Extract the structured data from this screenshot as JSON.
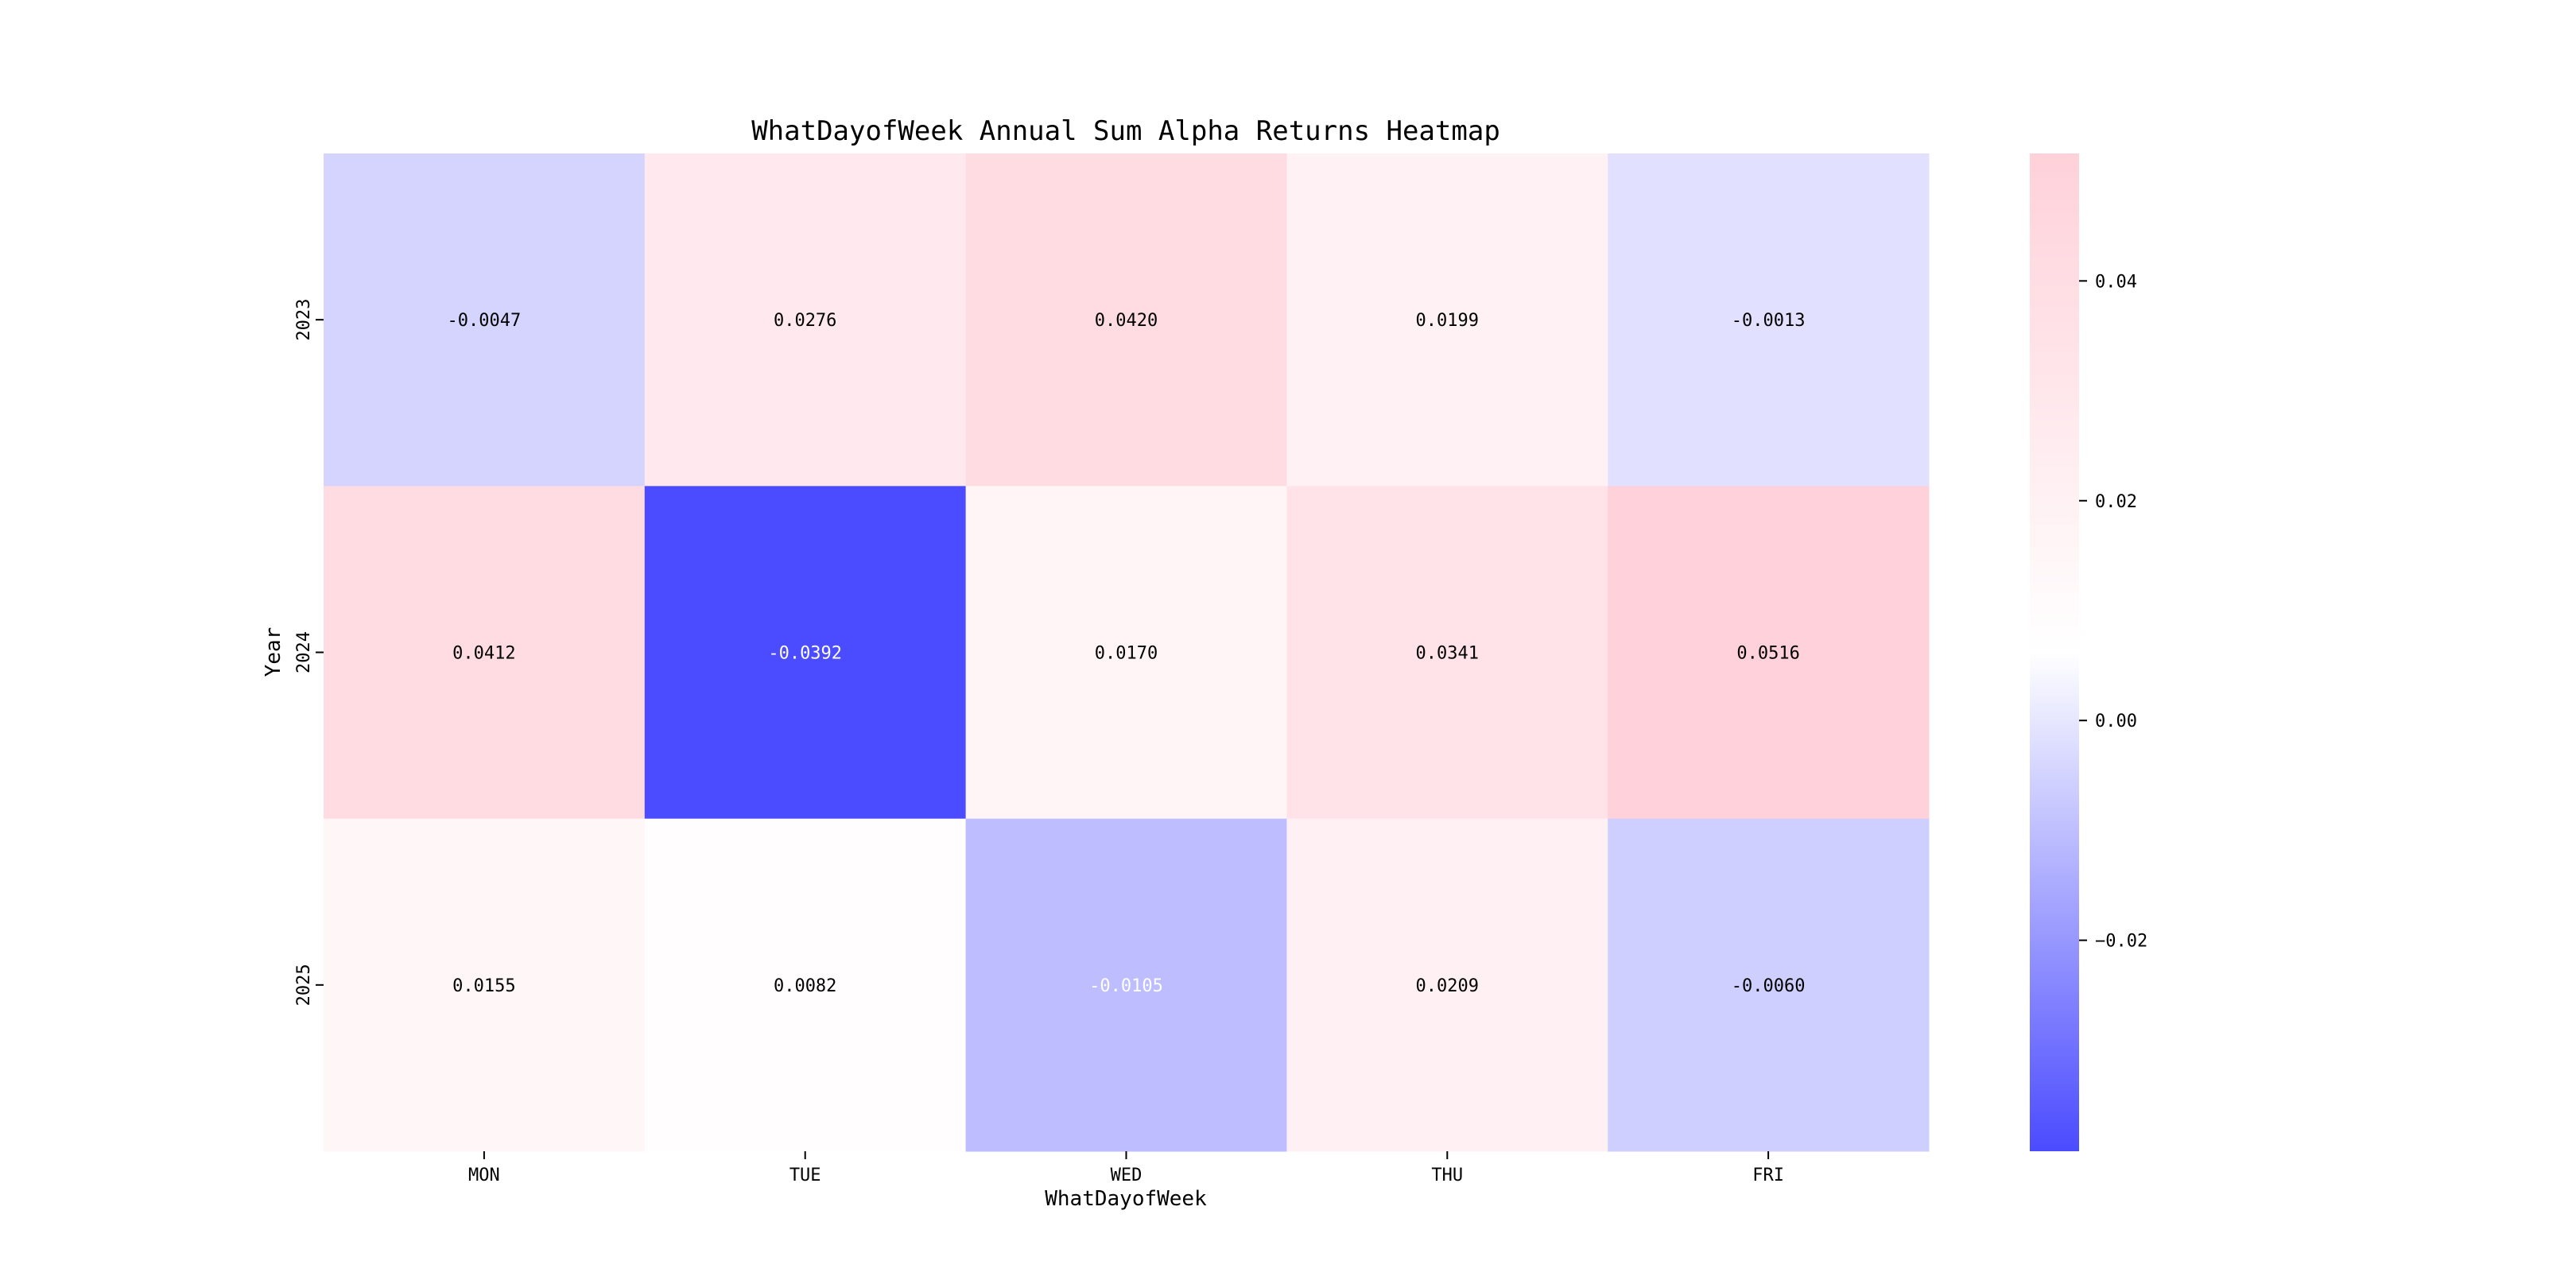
{
  "chart_data": {
    "type": "heatmap",
    "title": "WhatDayofWeek Annual Sum Alpha Returns Heatmap",
    "xlabel": "WhatDayofWeek",
    "ylabel": "Year",
    "x_categories": [
      "MON",
      "TUE",
      "WED",
      "THU",
      "FRI"
    ],
    "y_categories": [
      "2023",
      "2024",
      "2025"
    ],
    "values": [
      [
        -0.0047,
        0.0276,
        0.042,
        0.0199,
        -0.0013
      ],
      [
        0.0412,
        -0.0392,
        0.017,
        0.0341,
        0.0516
      ],
      [
        0.0155,
        0.0082,
        -0.0105,
        0.0209,
        -0.006
      ]
    ],
    "annotations": [
      [
        "-0.0047",
        "0.0276",
        "0.0420",
        "0.0199",
        "-0.0013"
      ],
      [
        "0.0412",
        "-0.0392",
        "0.0170",
        "0.0341",
        "0.0516"
      ],
      [
        "0.0155",
        "0.0082",
        "-0.0105",
        "0.0209",
        "-0.0060"
      ]
    ],
    "colorbar": {
      "range": [
        -0.0392,
        0.0516
      ],
      "ticks": [
        0.04,
        0.02,
        0.0,
        -0.02
      ],
      "tick_labels": [
        "0.04",
        "0.02",
        "0.00",
        "−0.02"
      ],
      "colors": [
        "#4b4bff",
        "#ffffff",
        "#ffd1da"
      ]
    },
    "legend": "colorbar-right",
    "grid": false
  }
}
